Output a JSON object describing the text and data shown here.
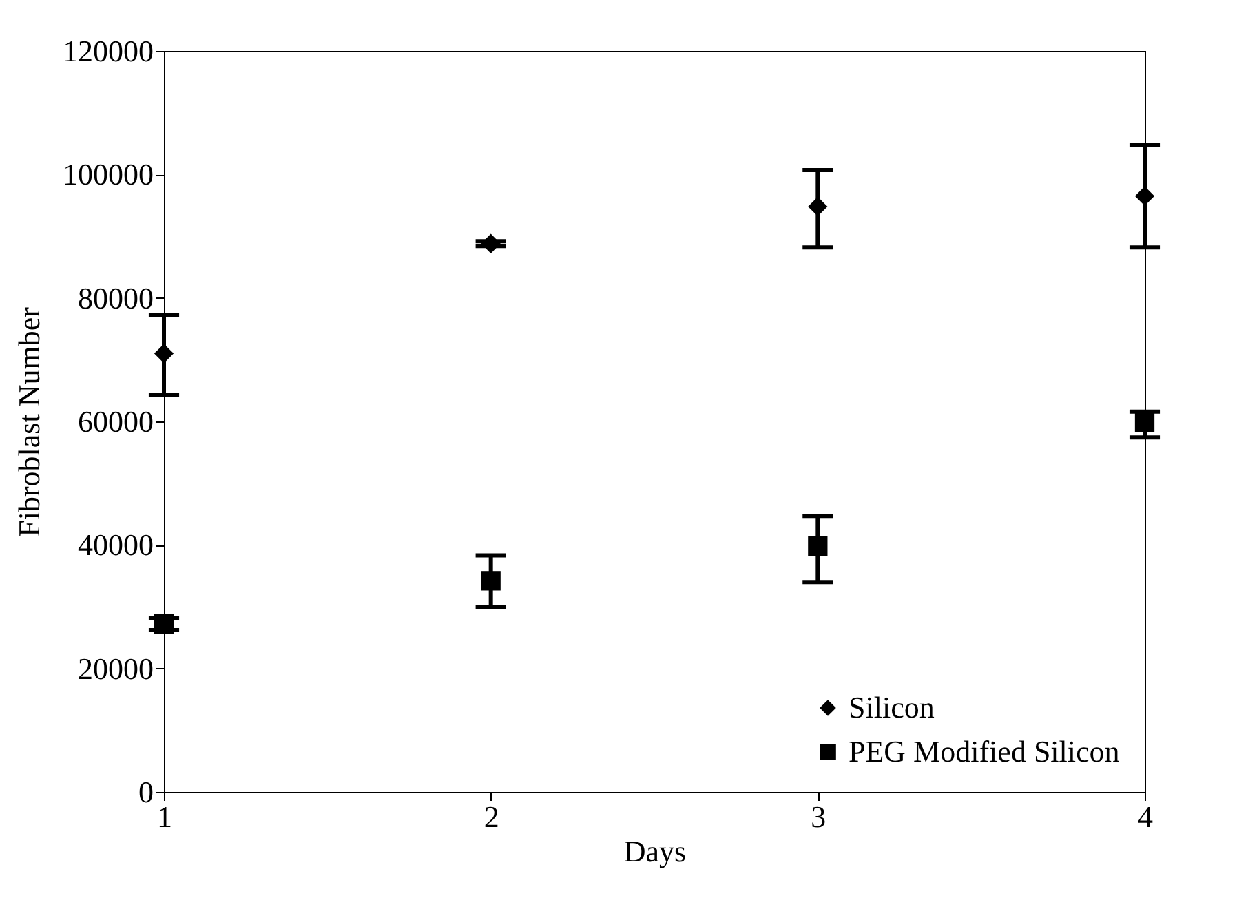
{
  "chart_data": {
    "type": "scatter",
    "xlabel": "Days",
    "ylabel": "Fibroblast Number",
    "x": [
      1,
      2,
      3,
      4
    ],
    "xlim": [
      1,
      4
    ],
    "xticks": [
      1,
      2,
      3,
      4
    ],
    "ylim": [
      0,
      120000
    ],
    "yticks": [
      0,
      20000,
      40000,
      60000,
      80000,
      100000,
      120000
    ],
    "grid": false,
    "legend": "bottom right",
    "series": [
      {
        "name": "Silicon",
        "color": "#000000",
        "marker": "diamond",
        "values": [
          71000,
          88800,
          94800,
          96500
        ],
        "errors": [
          [
            64300,
            77300
          ],
          [
            88400,
            89200
          ],
          [
            88200,
            100700
          ],
          [
            88200,
            104800
          ]
        ]
      },
      {
        "name": "PEG Modified Silicon",
        "color": "#000000",
        "marker": "square",
        "values": [
          27200,
          34200,
          39800,
          59900
        ],
        "errors": [
          [
            26200,
            28200
          ],
          [
            30000,
            38300
          ],
          [
            34000,
            44700
          ],
          [
            57400,
            61600
          ]
        ]
      }
    ]
  }
}
